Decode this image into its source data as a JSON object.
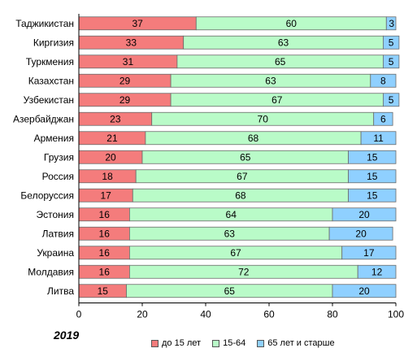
{
  "chart_data": {
    "type": "bar",
    "orientation": "horizontal",
    "stacked": true,
    "categories": [
      "Таджикистан",
      "Киргизия",
      "Туркмения",
      "Казахстан",
      "Узбекистан",
      "Азербайджан",
      "Армения",
      "Грузия",
      "Россия",
      "Белоруссия",
      "Эстония",
      "Латвия",
      "Украина",
      "Молдавия",
      "Литва"
    ],
    "series": [
      {
        "name": "до 15 лет",
        "color": "#f47c7c",
        "values": [
          37,
          33,
          31,
          29,
          29,
          23,
          21,
          20,
          18,
          17,
          16,
          16,
          16,
          16,
          15
        ]
      },
      {
        "name": "15-64",
        "color": "#b9fbc8",
        "values": [
          60,
          63,
          65,
          63,
          67,
          70,
          68,
          65,
          67,
          68,
          64,
          63,
          67,
          72,
          65
        ]
      },
      {
        "name": "65 лет и старше",
        "color": "#8fd0ff",
        "values": [
          3,
          5,
          5,
          8,
          5,
          6,
          11,
          15,
          15,
          15,
          20,
          20,
          17,
          12,
          20
        ]
      }
    ],
    "xlim": [
      0,
      100
    ],
    "xticks": [
      "0",
      "20",
      "40",
      "60",
      "80",
      "100"
    ],
    "annotation": "2019",
    "legend_position": "bottom",
    "grid": false
  }
}
